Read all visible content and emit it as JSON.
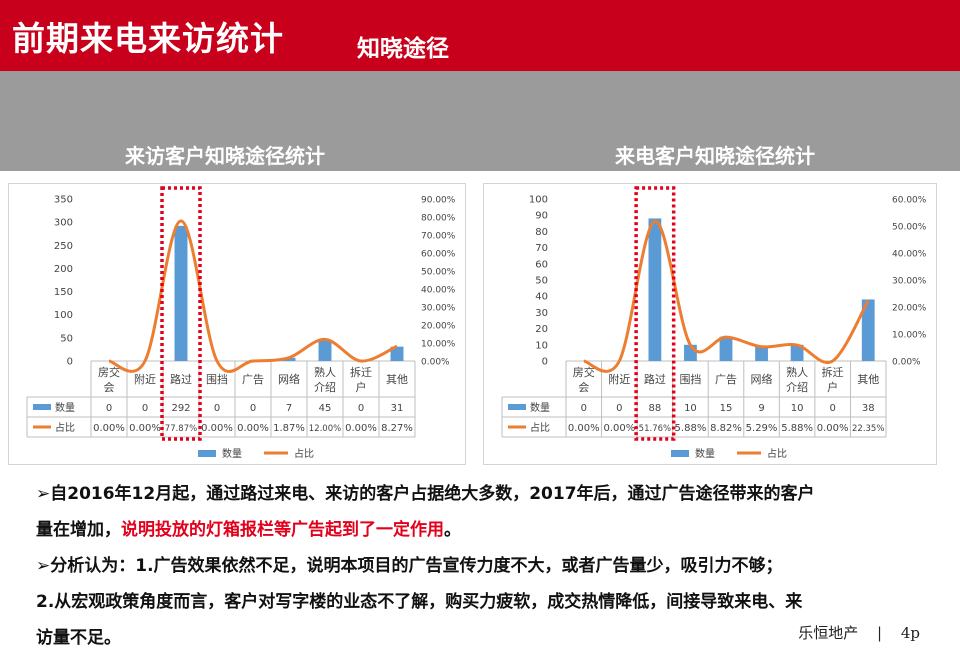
{
  "header": {
    "title": "前期来电来访统计",
    "subtitle": "知晓途径"
  },
  "panels": {
    "left_title": "来访客户知晓途径统计",
    "right_title": "来电客户知晓途径统计"
  },
  "chart_data": [
    {
      "type": "bar",
      "title": "来访客户知晓途径统计",
      "categories": [
        "房交会",
        "附近",
        "路过",
        "围挡",
        "广告",
        "网络",
        "熟人介绍",
        "拆迁户",
        "其他"
      ],
      "series": [
        {
          "name": "数量",
          "values": [
            0,
            0,
            292,
            0,
            0,
            7,
            45,
            0,
            31
          ],
          "axis": "left",
          "color": "#5b9bd5"
        },
        {
          "name": "占比",
          "values": [
            0.0,
            0.0,
            77.87,
            0.0,
            0.0,
            1.87,
            12.0,
            0.0,
            8.27
          ],
          "axis": "right",
          "type": "line",
          "color": "#ed7d31"
        }
      ],
      "table_rows": [
        {
          "name": "数量",
          "cells": [
            "0",
            "0",
            "292",
            "0",
            "0",
            "7",
            "45",
            "0",
            "31"
          ]
        },
        {
          "name": "占比",
          "cells": [
            "0.00%",
            "0.00%",
            "77.87%",
            "0.00%",
            "0.00%",
            "1.87%",
            "12.00%",
            "0.00%",
            "8.27%"
          ]
        }
      ],
      "ylim": [
        0,
        350
      ],
      "y_ticks": [
        "0",
        "50",
        "100",
        "150",
        "200",
        "250",
        "300",
        "350"
      ],
      "y2lim": [
        0,
        90
      ],
      "y2_ticks": [
        "0.00%",
        "10.00%",
        "20.00%",
        "30.00%",
        "40.00%",
        "50.00%",
        "60.00%",
        "70.00%",
        "80.00%",
        "90.00%"
      ],
      "highlight_category": "路过",
      "legend": [
        "数量",
        "占比"
      ],
      "legend_position": "bottom"
    },
    {
      "type": "bar",
      "title": "来电客户知晓途径统计",
      "categories": [
        "房交会",
        "附近",
        "路过",
        "围挡",
        "广告",
        "网络",
        "熟人介绍",
        "拆迁户",
        "其他"
      ],
      "series": [
        {
          "name": "数量",
          "values": [
            0,
            0,
            88,
            10,
            15,
            9,
            10,
            0,
            38
          ],
          "axis": "left",
          "color": "#5b9bd5"
        },
        {
          "name": "占比",
          "values": [
            0.0,
            0.0,
            51.76,
            5.88,
            8.82,
            5.29,
            5.88,
            0.0,
            22.35
          ],
          "axis": "right",
          "type": "line",
          "color": "#ed7d31"
        }
      ],
      "table_rows": [
        {
          "name": "数量",
          "cells": [
            "0",
            "0",
            "88",
            "10",
            "15",
            "9",
            "10",
            "0",
            "38"
          ]
        },
        {
          "name": "占比",
          "cells": [
            "0.00%",
            "0.00%",
            "51.76%",
            "5.88%",
            "8.82%",
            "5.29%",
            "5.88%",
            "0.00%",
            "22.35%"
          ]
        }
      ],
      "ylim": [
        0,
        100
      ],
      "y_ticks": [
        "0",
        "10",
        "20",
        "30",
        "40",
        "50",
        "60",
        "70",
        "80",
        "90",
        "100"
      ],
      "y2lim": [
        0,
        60
      ],
      "y2_ticks": [
        "0.00%",
        "10.00%",
        "20.00%",
        "30.00%",
        "40.00%",
        "50.00%",
        "60.00%"
      ],
      "highlight_category": "路过",
      "legend": [
        "数量",
        "占比"
      ],
      "legend_position": "bottom"
    }
  ],
  "bullets": {
    "line1": "➢自2016年12月起，通过路过来电、来访的客户占据绝大多数，2017年后，通过广告途径带来的客户",
    "line2_a": "量在增加，",
    "line2_red": "说明投放的灯箱报栏等广告起到了一定作用",
    "line2_b": "。",
    "line3": "➢分析认为：1.广告效果依然不足，说明本项目的广告宣传力度不大，或者广告量少，吸引力不够；",
    "line4": "2.从宏观政策角度而言，客户对写字楼的业态不了解，购买力疲软，成交热情降低，间接导致来电、来",
    "line5": "访量不足。"
  },
  "footer": {
    "brand": "乐恒地产",
    "separator": "|",
    "page": "4p"
  }
}
